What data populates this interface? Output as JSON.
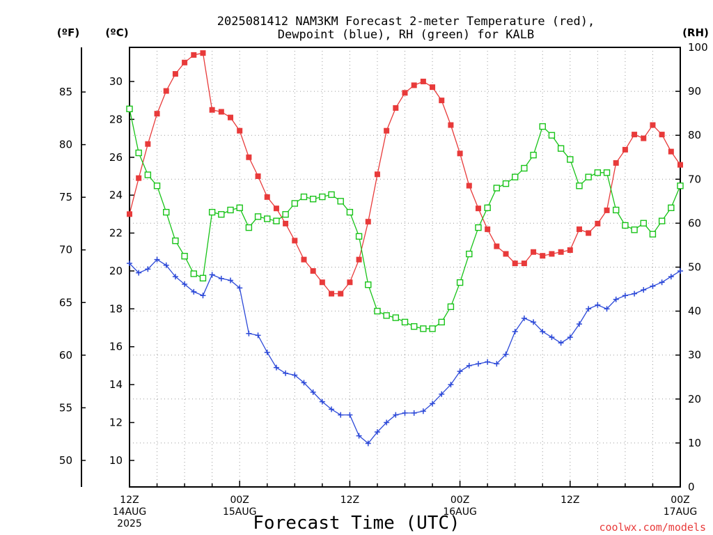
{
  "title_lines": [
    "2025081412 NAM3KM Forecast 2-meter Temperature (red),",
    "Dewpoint (blue), RH (green) for KALB"
  ],
  "units": {
    "fahrenheit": "(ºF)",
    "celsius": "(ºC)",
    "rh": "(RH)"
  },
  "credit": "coolwx.com/models",
  "colors": {
    "temperature": "#e83a3a",
    "dewpoint": "#2b48d8",
    "rh": "#18c318",
    "grid": "#9a9a9a"
  },
  "chart_data": {
    "type": "line",
    "title": "2025081412 NAM3KM Forecast 2-meter Temperature (red), Dewpoint (blue), RH (green) for KALB",
    "xlabel": "Forecast Time (UTC)",
    "x_unit": "forecast hour",
    "xlim": [
      0,
      60
    ],
    "x_ticks": [
      {
        "x": 0,
        "lines": [
          "12Z",
          "14AUG",
          "2025"
        ]
      },
      {
        "x": 12,
        "lines": [
          "00Z",
          "15AUG"
        ]
      },
      {
        "x": 24,
        "lines": [
          "12Z"
        ]
      },
      {
        "x": 36,
        "lines": [
          "00Z",
          "16AUG"
        ]
      },
      {
        "x": 48,
        "lines": [
          "12Z"
        ]
      },
      {
        "x": 60,
        "lines": [
          "00Z",
          "17AUG"
        ]
      }
    ],
    "axes": {
      "celsius": {
        "label": "(ºC)",
        "lim": [
          8.6,
          31.8
        ],
        "ticks": [
          10,
          12,
          14,
          16,
          18,
          20,
          22,
          24,
          26,
          28,
          30
        ]
      },
      "fahrenheit": {
        "label": "(ºF)",
        "ticks": [
          50,
          55,
          60,
          65,
          70,
          75,
          80,
          85
        ]
      },
      "rh": {
        "label": "(RH)",
        "lim": [
          0,
          100
        ],
        "ticks": [
          0,
          10,
          20,
          30,
          40,
          50,
          60,
          70,
          80,
          90,
          100
        ]
      }
    },
    "grid": true,
    "series": [
      {
        "name": "Temperature",
        "axis": "celsius",
        "marker": "filled-square",
        "x": [
          0,
          1,
          2,
          3,
          4,
          5,
          6,
          7,
          8,
          9,
          10,
          11,
          12,
          13,
          14,
          15,
          16,
          17,
          18,
          19,
          20,
          21,
          22,
          23,
          24,
          25,
          26,
          27,
          28,
          29,
          30,
          31,
          32,
          33,
          34,
          35,
          36,
          37,
          38,
          39,
          40,
          41,
          42,
          43,
          44,
          45,
          46,
          47,
          48,
          49,
          50,
          51,
          52,
          53,
          54,
          55,
          56,
          57,
          58,
          59,
          60
        ],
        "values": [
          23.0,
          24.9,
          26.7,
          28.3,
          29.5,
          30.4,
          31.0,
          31.4,
          31.5,
          28.5,
          28.4,
          28.1,
          27.4,
          26.0,
          25.0,
          23.9,
          23.3,
          22.5,
          21.6,
          20.6,
          20.0,
          19.4,
          18.8,
          18.8,
          19.4,
          20.6,
          22.6,
          25.1,
          27.4,
          28.6,
          29.4,
          29.8,
          30.0,
          29.7,
          29.0,
          27.7,
          26.2,
          24.5,
          23.3,
          22.2,
          21.3,
          20.9,
          20.4,
          20.4,
          21.0,
          20.8,
          20.9,
          21.0,
          21.1,
          22.2,
          22.0,
          22.5,
          23.2,
          25.7,
          26.4,
          27.2,
          27.0,
          27.7,
          27.2,
          26.3,
          25.6
        ]
      },
      {
        "name": "Dewpoint",
        "axis": "celsius",
        "marker": "plus",
        "x": [
          0,
          1,
          2,
          3,
          4,
          5,
          6,
          7,
          8,
          9,
          10,
          11,
          12,
          13,
          14,
          15,
          16,
          17,
          18,
          19,
          20,
          21,
          22,
          23,
          24,
          25,
          26,
          27,
          28,
          29,
          30,
          31,
          32,
          33,
          34,
          35,
          36,
          37,
          38,
          39,
          40,
          41,
          42,
          43,
          44,
          45,
          46,
          47,
          48,
          49,
          50,
          51,
          52,
          53,
          54,
          55,
          56,
          57,
          58,
          59,
          60
        ],
        "values": [
          20.4,
          19.9,
          20.1,
          20.6,
          20.3,
          19.7,
          19.3,
          18.9,
          18.7,
          19.8,
          19.6,
          19.5,
          19.1,
          16.7,
          16.6,
          15.7,
          14.9,
          14.6,
          14.5,
          14.1,
          13.6,
          13.1,
          12.7,
          12.4,
          12.4,
          11.3,
          10.9,
          11.5,
          12.0,
          12.4,
          12.5,
          12.5,
          12.6,
          13.0,
          13.5,
          14.0,
          14.7,
          15.0,
          15.1,
          15.2,
          15.1,
          15.6,
          16.8,
          17.5,
          17.3,
          16.8,
          16.5,
          16.2,
          16.5,
          17.2,
          18.0,
          18.2,
          18.0,
          18.5,
          18.7,
          18.8,
          19.0,
          19.2,
          19.4,
          19.7,
          20.0
        ]
      },
      {
        "name": "RH",
        "axis": "rh",
        "marker": "open-square",
        "x": [
          0,
          1,
          2,
          3,
          4,
          5,
          6,
          7,
          8,
          9,
          10,
          11,
          12,
          13,
          14,
          15,
          16,
          17,
          18,
          19,
          20,
          21,
          22,
          23,
          24,
          25,
          26,
          27,
          28,
          29,
          30,
          31,
          32,
          33,
          34,
          35,
          36,
          37,
          38,
          39,
          40,
          41,
          42,
          43,
          44,
          45,
          46,
          47,
          48,
          49,
          50,
          51,
          52,
          53,
          54,
          55,
          56,
          57,
          58,
          59,
          60
        ],
        "values": [
          86,
          76,
          71,
          68.5,
          62.5,
          56,
          52.5,
          48.5,
          47.5,
          62.5,
          62,
          63,
          63.5,
          59,
          61.5,
          61,
          60.5,
          62,
          64.5,
          66,
          65.5,
          66,
          66.5,
          65,
          62.5,
          57,
          46,
          40,
          39,
          38.5,
          37.5,
          36.5,
          36,
          36,
          37.5,
          41,
          46.5,
          53,
          59,
          63.5,
          68,
          69,
          70.5,
          72.5,
          75.5,
          82,
          80,
          77,
          74.5,
          68.5,
          70.5,
          71.5,
          71.5,
          63,
          59.5,
          58.5,
          60,
          57.5,
          60.5,
          63.5,
          68.5
        ]
      }
    ]
  }
}
